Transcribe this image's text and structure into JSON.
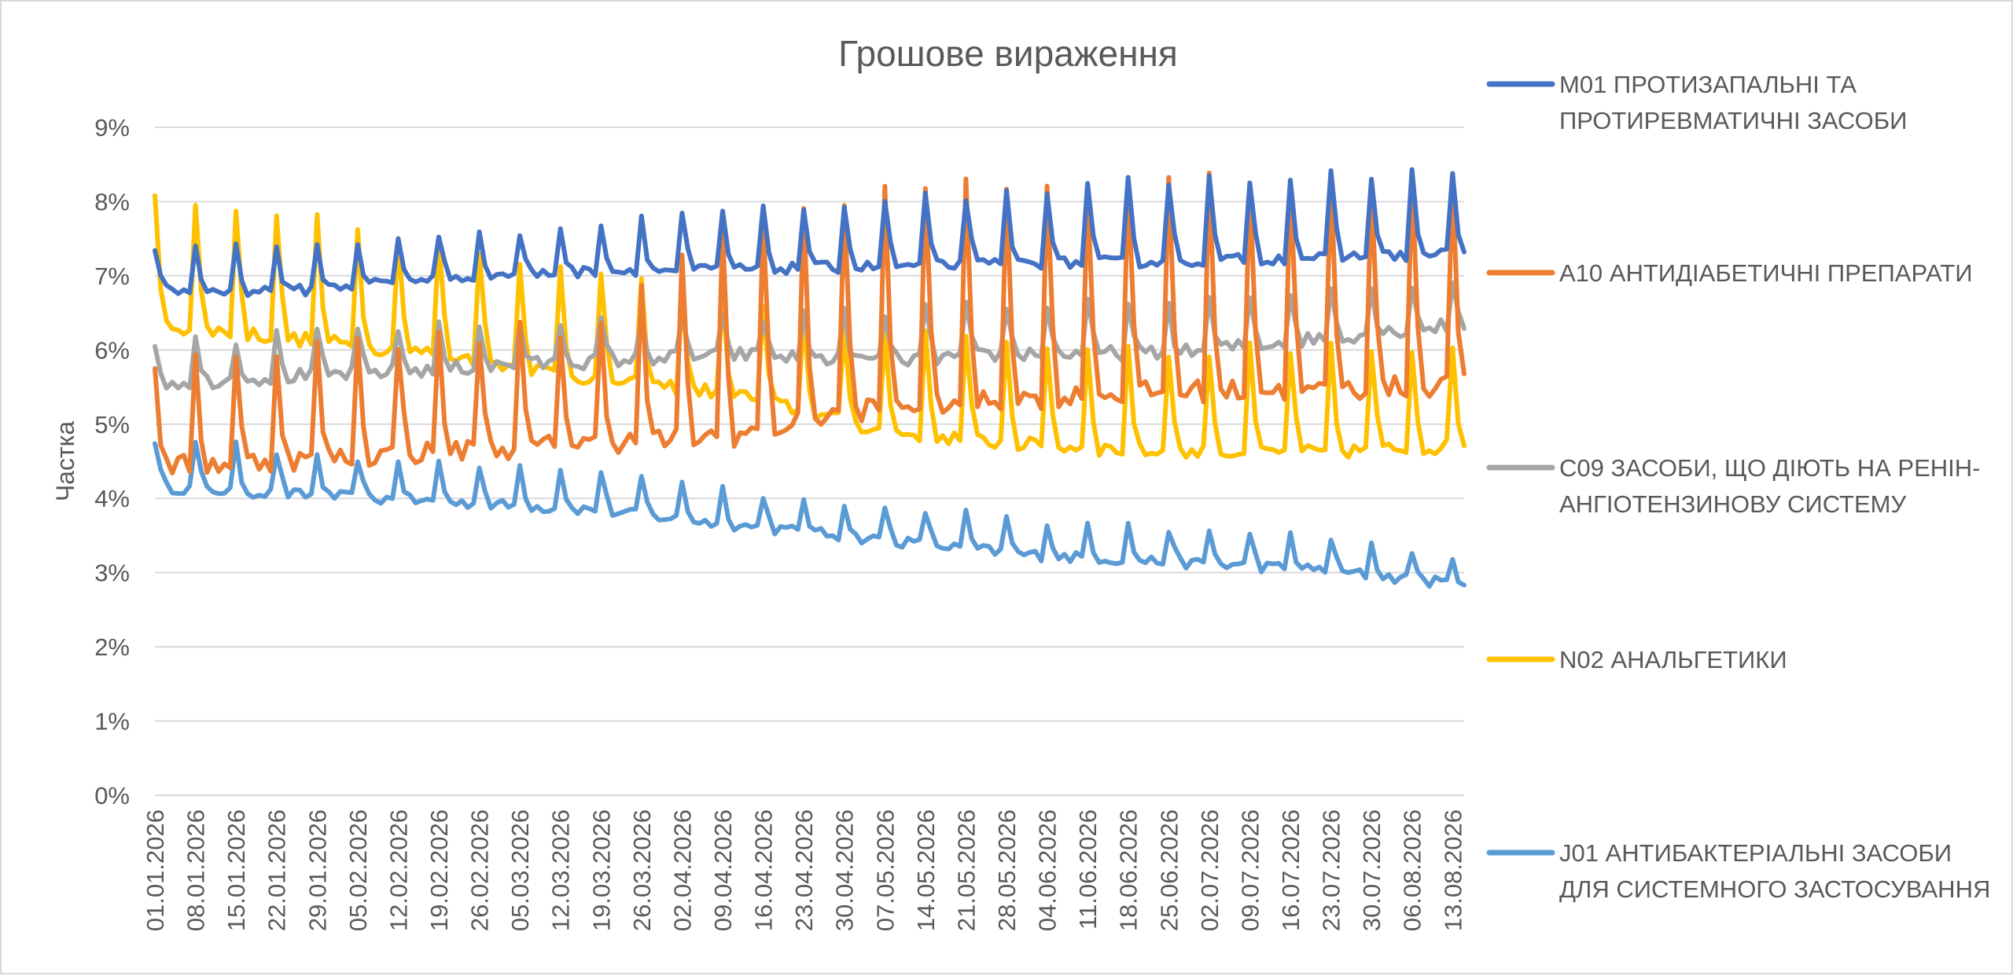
{
  "chart_data": {
    "type": "line",
    "title": "Грошове вираження",
    "xlabel": "",
    "ylabel": "Частка",
    "ylim": [
      0,
      0.09
    ],
    "y_ticks": [
      0,
      0.01,
      0.02,
      0.03,
      0.04,
      0.05,
      0.06,
      0.07,
      0.08,
      0.09
    ],
    "y_tick_labels": [
      "0%",
      "1%",
      "2%",
      "3%",
      "4%",
      "5%",
      "6%",
      "7%",
      "8%",
      "9%"
    ],
    "x_start": "01.01.2026",
    "x_end": "15.08.2026",
    "x_tick_labels": [
      "01.01.2026",
      "08.01.2026",
      "15.01.2026",
      "22.01.2026",
      "29.01.2026",
      "05.02.2026",
      "12.02.2026",
      "19.02.2026",
      "26.02.2026",
      "05.03.2026",
      "12.03.2026",
      "19.03.2026",
      "26.03.2026",
      "02.04.2026",
      "09.04.2026",
      "16.04.2026",
      "23.04.2026",
      "30.04.2026",
      "07.05.2026",
      "14.05.2026",
      "21.05.2026",
      "28.05.2026",
      "04.06.2026",
      "11.06.2026",
      "18.06.2026",
      "25.06.2026",
      "02.07.2026",
      "09.07.2026",
      "16.07.2026",
      "23.07.2026",
      "30.07.2026",
      "06.08.2026",
      "13.08.2026"
    ],
    "grid": true,
    "legend_position": "right",
    "series": [
      {
        "name": "M01 ПРОТИЗАПАЛЬНІ ТА ПРОТИРЕВМАТИЧНІ ЗАСОБИ",
        "color": "#4472c4",
        "base": [
          0.0675,
          0.0675,
          0.0695,
          0.07,
          0.0702,
          0.0705,
          0.0708,
          0.071,
          0.0715,
          0.072
        ],
        "peak": [
          0.0735,
          0.074,
          0.0745,
          0.0755,
          0.078,
          0.0785,
          0.08,
          0.081,
          0.0825,
          0.083,
          0.0835,
          0.084
        ],
        "noise": 0.0015
      },
      {
        "name": "A10 АНТИДІАБЕТИЧНІ ПРЕПАРАТИ",
        "color": "#ed7d31",
        "base": [
          0.043,
          0.044,
          0.045,
          0.046,
          0.046,
          0.05,
          0.051,
          0.052,
          0.052,
          0.053
        ],
        "peak": [
          0.058,
          0.06,
          0.062,
          0.063,
          0.077,
          0.081,
          0.082,
          0.083,
          0.083,
          0.083
        ],
        "noise": 0.003
      },
      {
        "name": "C09 ЗАСОБИ, ЩО ДІЮТЬ НА РЕНІН-АНГІОТЕНЗИНОВУ СИСТЕМУ",
        "color": "#a5a5a5",
        "base": [
          0.055,
          0.056,
          0.057,
          0.058,
          0.059,
          0.058,
          0.059,
          0.059,
          0.061,
          0.063
        ],
        "peak": [
          0.061,
          0.062,
          0.063,
          0.064,
          0.064,
          0.065,
          0.066,
          0.066,
          0.068,
          0.069
        ],
        "noise": 0.002
      },
      {
        "name": "N02 АНАЛЬГЕТИКИ",
        "color": "#ffc000",
        "base": [
          0.062,
          0.06,
          0.058,
          0.055,
          0.053,
          0.048,
          0.046,
          0.045,
          0.045,
          0.046
        ],
        "peak": [
          0.08,
          0.078,
          0.075,
          0.07,
          0.066,
          0.062,
          0.061,
          0.06,
          0.06,
          0.06
        ],
        "noise": 0.002
      },
      {
        "name": "J01 АНТИБАКТЕРІАЛЬНІ ЗАСОБИ ДЛЯ СИСТЕМНОГО ЗАСТОСУВАННЯ",
        "color": "#5b9bd5",
        "base": [
          0.041,
          0.04,
          0.039,
          0.038,
          0.036,
          0.034,
          0.032,
          0.031,
          0.03,
          0.028
        ],
        "peak": [
          0.048,
          0.046,
          0.045,
          0.044,
          0.041,
          0.039,
          0.037,
          0.036,
          0.035,
          0.032
        ],
        "noise": 0.0015
      }
    ]
  },
  "legend": [
    {
      "lines": [
        "M01 ПРОТИЗАПАЛЬНІ ТА",
        "ПРОТИРЕВМАТИЧНІ ЗАСОБИ"
      ]
    },
    {
      "lines": [
        "A10 АНТИДІАБЕТИЧНІ ПРЕПАРАТИ"
      ]
    },
    {
      "lines": [
        "C09 ЗАСОБИ, ЩО ДІЮТЬ НА РЕНІН-",
        "АНГІОТЕНЗИНОВУ СИСТЕМУ"
      ]
    },
    {
      "lines": [
        "N02 АНАЛЬГЕТИКИ"
      ]
    },
    {
      "lines": [
        "J01 АНТИБАКТЕРІАЛЬНІ ЗАСОБИ",
        "ДЛЯ СИСТЕМНОГО ЗАСТОСУВАННЯ"
      ]
    }
  ]
}
